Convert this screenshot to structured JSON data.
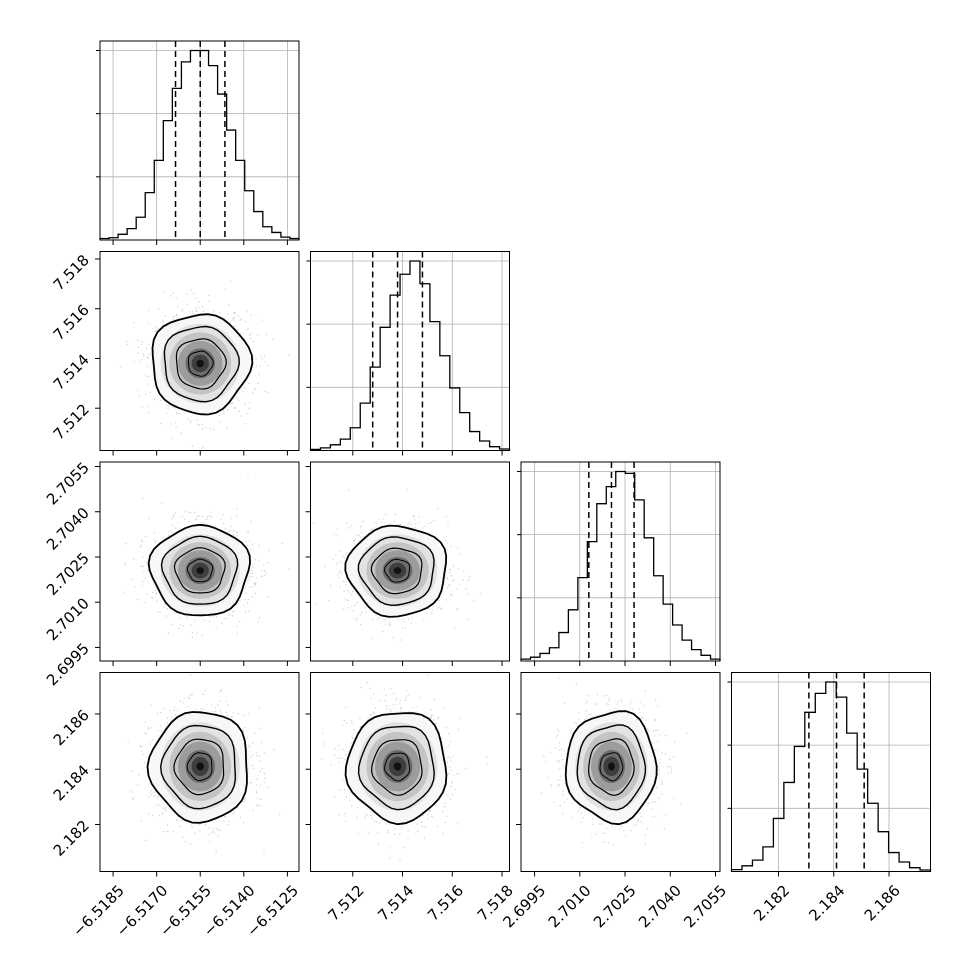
{
  "chart_data": {
    "type": "corner",
    "n_params": 4,
    "colors": {
      "line": "#000000",
      "grid": "#b0b0b0",
      "points": "#9a9a9a"
    },
    "grid": true,
    "quantile_lines": "dashed",
    "params": [
      {
        "median": -6.5155,
        "q16": -6.51635,
        "q84": -6.51465,
        "sigma": 0.00085,
        "range": [
          -6.51895,
          -6.5121
        ],
        "ticks": [
          -6.5185,
          -6.517,
          -6.5155,
          -6.514,
          -6.5125
        ],
        "tick_labels": [
          "−6.5185",
          "−6.5170",
          "−6.5155",
          "−6.5140",
          "−6.5125"
        ]
      },
      {
        "median": 7.5138,
        "q16": 7.5128,
        "q84": 7.5148,
        "sigma": 0.001,
        "range": [
          7.5103,
          7.5183
        ],
        "ticks": [
          7.512,
          7.514,
          7.516,
          7.518
        ],
        "tick_labels": [
          "7.512",
          "7.514",
          "7.516",
          "7.518"
        ]
      },
      {
        "median": 2.70205,
        "q16": 2.7013,
        "q84": 2.7028,
        "sigma": 0.00075,
        "range": [
          2.69905,
          2.70565
        ],
        "ticks": [
          2.6995,
          2.701,
          2.7025,
          2.704,
          2.7055
        ],
        "tick_labels": [
          "2.6995",
          "2.7010",
          "2.7025",
          "2.7040",
          "2.7055"
        ]
      },
      {
        "median": 2.1841,
        "q16": 2.1831,
        "q84": 2.1851,
        "sigma": 0.001,
        "range": [
          2.1803,
          2.1875
        ],
        "ticks": [
          2.182,
          2.184,
          2.186
        ],
        "tick_labels": [
          "2.182",
          "2.184",
          "2.186"
        ]
      }
    ],
    "histograms": [
      [
        0.008,
        0.012,
        0.03,
        0.06,
        0.12,
        0.25,
        0.42,
        0.63,
        0.8,
        0.94,
        1.0,
        1.0,
        0.92,
        0.77,
        0.58,
        0.42,
        0.26,
        0.15,
        0.07,
        0.04,
        0.015,
        0.008
      ],
      [
        0.006,
        0.014,
        0.03,
        0.06,
        0.12,
        0.25,
        0.44,
        0.65,
        0.82,
        0.93,
        1.0,
        0.88,
        0.68,
        0.5,
        0.33,
        0.2,
        0.1,
        0.05,
        0.02,
        0.008
      ],
      [
        0.01,
        0.02,
        0.04,
        0.07,
        0.15,
        0.27,
        0.44,
        0.63,
        0.83,
        0.92,
        1.0,
        0.99,
        0.85,
        0.65,
        0.45,
        0.3,
        0.19,
        0.11,
        0.06,
        0.03,
        0.01
      ],
      [
        0.01,
        0.03,
        0.06,
        0.13,
        0.28,
        0.47,
        0.66,
        0.84,
        0.94,
        1.0,
        0.92,
        0.73,
        0.54,
        0.36,
        0.21,
        0.1,
        0.05,
        0.02,
        0.008
      ]
    ]
  }
}
